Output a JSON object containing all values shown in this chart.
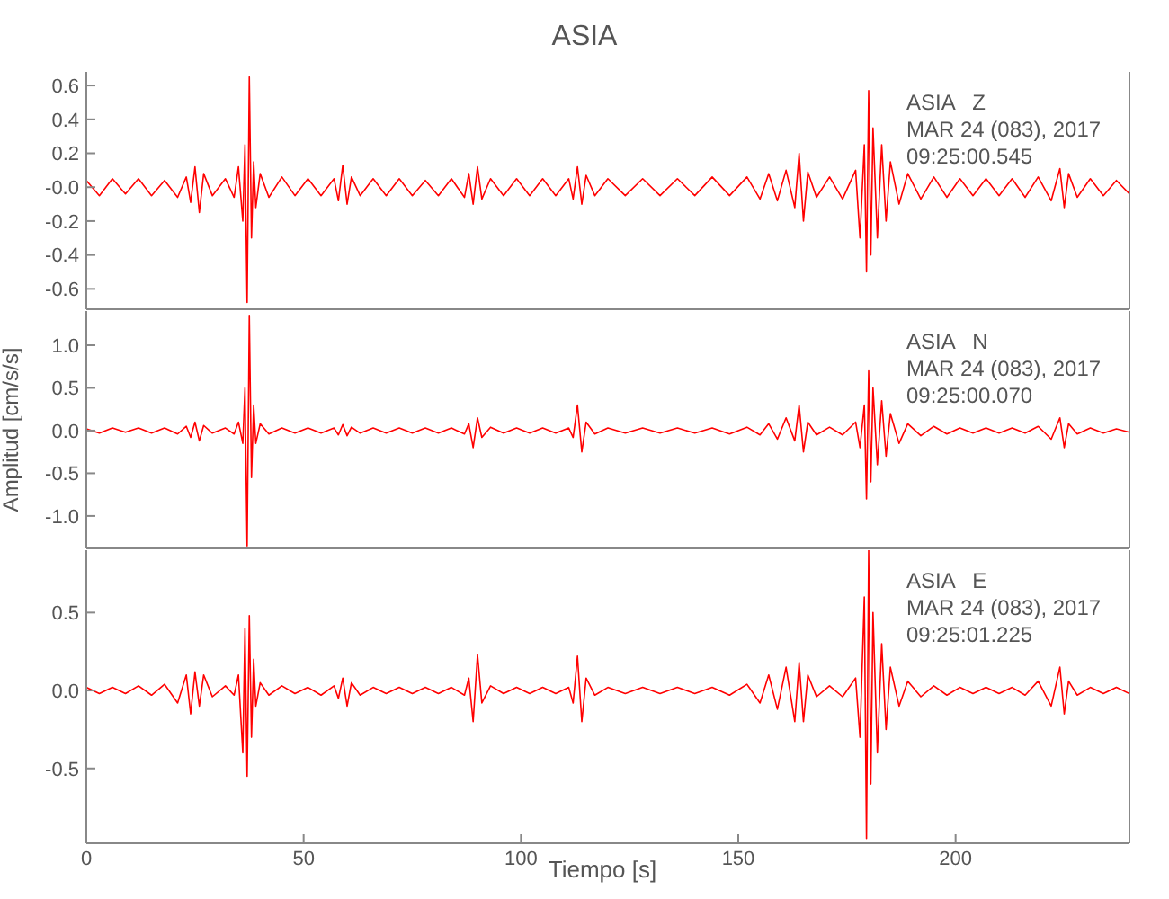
{
  "chart_data": [
    {
      "type": "line",
      "title": "ASIA",
      "annotations": [
        "ASIA   Z",
        "MAR 24 (083), 2017",
        "09:25:00.545"
      ],
      "tick_labels": "y",
      "xlim": [
        0,
        240
      ],
      "xticks": [
        0,
        50,
        100,
        150,
        200
      ],
      "ylim": [
        -0.72,
        0.68
      ],
      "yticks": [
        -0.6,
        -0.4,
        -0.2,
        {
          "value": 0,
          "label": "-0.0"
        },
        0.2,
        0.4,
        0.6
      ],
      "x": [
        0,
        3,
        6,
        9,
        12,
        15,
        18,
        21,
        23,
        24,
        25,
        26,
        27,
        29,
        32,
        34,
        35,
        36,
        36.5,
        37,
        37.5,
        38,
        38.5,
        39,
        40,
        42,
        45,
        48,
        51,
        54,
        57,
        58,
        59,
        60,
        61,
        63,
        66,
        69,
        72,
        75,
        78,
        81,
        84,
        87,
        88,
        89,
        90,
        91,
        93,
        96,
        99,
        102,
        105,
        108,
        111,
        112,
        113,
        114,
        115,
        117,
        120,
        124,
        128,
        132,
        136,
        140,
        144,
        148,
        152,
        155,
        157,
        159,
        161,
        163,
        164,
        165,
        166,
        168,
        171,
        174,
        177,
        178,
        179,
        179.5,
        180,
        180.5,
        181,
        182,
        183,
        184,
        185,
        187,
        189,
        192,
        195,
        198,
        201,
        204,
        207,
        210,
        213,
        216,
        219,
        222,
        224,
        225,
        226,
        228,
        231,
        234,
        237,
        240
      ],
      "series": [
        {
          "color": "#ff0000",
          "values": [
            0.04,
            -0.05,
            0.05,
            -0.04,
            0.05,
            -0.05,
            0.04,
            -0.06,
            0.06,
            -0.09,
            0.12,
            -0.15,
            0.08,
            -0.05,
            0.05,
            -0.06,
            0.12,
            -0.2,
            0.25,
            -0.68,
            0.65,
            -0.3,
            0.15,
            -0.12,
            0.08,
            -0.06,
            0.06,
            -0.05,
            0.05,
            -0.05,
            0.05,
            -0.08,
            0.13,
            -0.1,
            0.06,
            -0.05,
            0.05,
            -0.05,
            0.05,
            -0.05,
            0.04,
            -0.05,
            0.05,
            -0.06,
            0.08,
            -0.1,
            0.12,
            -0.07,
            0.05,
            -0.05,
            0.05,
            -0.05,
            0.05,
            -0.05,
            0.05,
            -0.07,
            0.12,
            -0.1,
            0.07,
            -0.05,
            0.05,
            -0.05,
            0.05,
            -0.05,
            0.05,
            -0.05,
            0.06,
            -0.05,
            0.06,
            -0.07,
            0.08,
            -0.08,
            0.1,
            -0.12,
            0.2,
            -0.2,
            0.09,
            -0.06,
            0.06,
            -0.07,
            0.1,
            -0.3,
            0.25,
            -0.5,
            0.57,
            -0.4,
            0.35,
            -0.3,
            0.25,
            -0.2,
            0.15,
            -0.1,
            0.08,
            -0.07,
            0.06,
            -0.06,
            0.05,
            -0.05,
            0.05,
            -0.05,
            0.05,
            -0.06,
            0.06,
            -0.08,
            0.11,
            -0.12,
            0.08,
            -0.06,
            0.05,
            -0.05,
            0.04,
            -0.04
          ]
        }
      ]
    },
    {
      "type": "line",
      "ylabel": "Amplitud [cm/s/s]",
      "annotations": [
        "ASIA   N",
        "MAR 24 (083), 2017",
        "09:25:00.070"
      ],
      "tick_labels": "y",
      "xlim": [
        0,
        240
      ],
      "xticks": [
        0,
        50,
        100,
        150,
        200
      ],
      "ylim": [
        -1.38,
        1.4
      ],
      "yticks": [
        {
          "value": -1,
          "label": "-1.0"
        },
        -0.5,
        {
          "value": 0,
          "label": "0.0"
        },
        0.5,
        {
          "value": 1,
          "label": "1.0"
        }
      ],
      "x": [
        0,
        3,
        6,
        9,
        12,
        15,
        18,
        21,
        23,
        24,
        25,
        26,
        27,
        29,
        32,
        34,
        35,
        36,
        36.5,
        37,
        37.5,
        38,
        38.5,
        39,
        40,
        42,
        45,
        48,
        51,
        54,
        57,
        58,
        59,
        60,
        61,
        63,
        66,
        69,
        72,
        75,
        78,
        81,
        84,
        87,
        88,
        89,
        90,
        91,
        93,
        96,
        99,
        102,
        105,
        108,
        111,
        112,
        113,
        114,
        115,
        117,
        120,
        124,
        128,
        132,
        136,
        140,
        144,
        148,
        152,
        155,
        157,
        159,
        161,
        163,
        164,
        165,
        166,
        168,
        171,
        174,
        177,
        178,
        179,
        179.5,
        180,
        180.5,
        181,
        182,
        183,
        184,
        185,
        187,
        189,
        192,
        195,
        198,
        201,
        204,
        207,
        210,
        213,
        216,
        219,
        222,
        224,
        225,
        226,
        228,
        231,
        234,
        237,
        240
      ],
      "series": [
        {
          "color": "#ff0000",
          "values": [
            0.02,
            -0.03,
            0.03,
            -0.02,
            0.03,
            -0.03,
            0.03,
            -0.04,
            0.05,
            -0.08,
            0.1,
            -0.12,
            0.06,
            -0.03,
            0.03,
            -0.04,
            0.1,
            -0.15,
            0.5,
            -1.35,
            1.35,
            -0.55,
            0.3,
            -0.15,
            0.08,
            -0.04,
            0.03,
            -0.03,
            0.03,
            -0.03,
            0.03,
            -0.05,
            0.07,
            -0.06,
            0.04,
            -0.03,
            0.03,
            -0.03,
            0.03,
            -0.03,
            0.03,
            -0.03,
            0.03,
            -0.04,
            0.08,
            -0.2,
            0.15,
            -0.08,
            0.04,
            -0.03,
            0.03,
            -0.03,
            0.03,
            -0.03,
            0.03,
            -0.08,
            0.3,
            -0.25,
            0.1,
            -0.04,
            0.03,
            -0.03,
            0.03,
            -0.03,
            0.03,
            -0.03,
            0.03,
            -0.04,
            0.04,
            -0.05,
            0.08,
            -0.1,
            0.15,
            -0.12,
            0.3,
            -0.25,
            0.1,
            -0.05,
            0.04,
            -0.05,
            0.1,
            -0.2,
            0.3,
            -0.8,
            0.7,
            -0.6,
            0.5,
            -0.4,
            0.35,
            -0.3,
            0.2,
            -0.15,
            0.08,
            -0.06,
            0.05,
            -0.04,
            0.03,
            -0.03,
            0.03,
            -0.03,
            0.03,
            -0.03,
            0.05,
            -0.1,
            0.15,
            -0.2,
            0.08,
            -0.04,
            0.03,
            -0.03,
            0.02,
            -0.02
          ]
        }
      ]
    },
    {
      "type": "line",
      "xlabel": "Tiempo [s]",
      "annotations": [
        "ASIA   E",
        "MAR 24 (083), 2017",
        "09:25:01.225"
      ],
      "xlim": [
        0,
        240
      ],
      "xticks": [
        0,
        50,
        100,
        150,
        200
      ],
      "ylim": [
        -0.98,
        0.9
      ],
      "yticks": [
        -0.5,
        {
          "value": 0,
          "label": "0.0"
        },
        0.5
      ],
      "x": [
        0,
        3,
        6,
        9,
        12,
        15,
        18,
        21,
        23,
        24,
        25,
        26,
        27,
        29,
        32,
        34,
        35,
        36,
        36.5,
        37,
        37.5,
        38,
        38.5,
        39,
        40,
        42,
        45,
        48,
        51,
        54,
        57,
        58,
        59,
        60,
        61,
        63,
        66,
        69,
        72,
        75,
        78,
        81,
        84,
        87,
        88,
        89,
        90,
        91,
        93,
        96,
        99,
        102,
        105,
        108,
        111,
        112,
        113,
        114,
        115,
        117,
        120,
        124,
        128,
        132,
        136,
        140,
        144,
        148,
        152,
        155,
        157,
        159,
        161,
        163,
        164,
        165,
        166,
        168,
        171,
        174,
        177,
        178,
        179,
        179.5,
        180,
        180.5,
        181,
        182,
        183,
        184,
        185,
        187,
        189,
        192,
        195,
        198,
        201,
        204,
        207,
        210,
        213,
        216,
        219,
        222,
        224,
        225,
        226,
        228,
        231,
        234,
        237,
        240
      ],
      "series": [
        {
          "color": "#ff0000",
          "values": [
            0.02,
            -0.02,
            0.02,
            -0.02,
            0.03,
            -0.03,
            0.04,
            -0.08,
            0.1,
            -0.15,
            0.12,
            -0.1,
            0.1,
            -0.04,
            0.03,
            -0.03,
            0.1,
            -0.4,
            0.4,
            -0.55,
            0.48,
            -0.3,
            0.2,
            -0.1,
            0.05,
            -0.03,
            0.03,
            -0.02,
            0.02,
            -0.03,
            0.03,
            -0.05,
            0.08,
            -0.1,
            0.05,
            -0.03,
            0.02,
            -0.02,
            0.02,
            -0.02,
            0.02,
            -0.02,
            0.02,
            -0.03,
            0.08,
            -0.2,
            0.23,
            -0.08,
            0.03,
            -0.02,
            0.02,
            -0.02,
            0.02,
            -0.02,
            0.02,
            -0.08,
            0.22,
            -0.2,
            0.08,
            -0.03,
            0.02,
            -0.02,
            0.02,
            -0.02,
            0.02,
            -0.02,
            0.02,
            -0.03,
            0.04,
            -0.08,
            0.1,
            -0.12,
            0.15,
            -0.2,
            0.18,
            -0.2,
            0.1,
            -0.04,
            0.03,
            -0.04,
            0.08,
            -0.3,
            0.6,
            -0.95,
            0.9,
            -0.6,
            0.5,
            -0.4,
            0.3,
            -0.25,
            0.15,
            -0.1,
            0.06,
            -0.04,
            0.03,
            -0.03,
            0.02,
            -0.02,
            0.02,
            -0.02,
            0.02,
            -0.03,
            0.06,
            -0.1,
            0.15,
            -0.15,
            0.06,
            -0.03,
            0.02,
            -0.02,
            0.02,
            -0.02
          ]
        }
      ]
    }
  ]
}
